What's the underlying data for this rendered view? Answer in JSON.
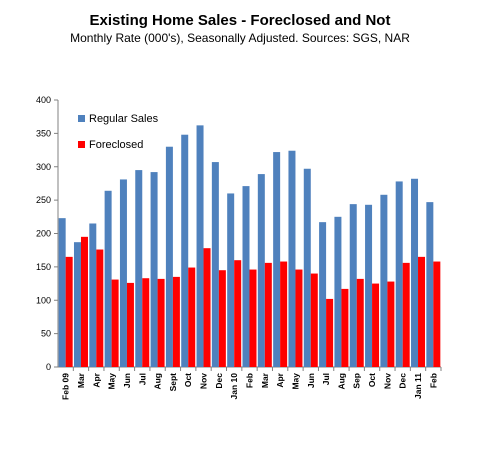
{
  "chart_data": {
    "type": "bar",
    "title": "Existing Home Sales - Foreclosed and Not",
    "subtitle": "Monthly Rate (000's), Seasonally Adjusted.  Sources: SGS, NAR",
    "categories": [
      "Feb 09",
      "Mar",
      "Apr",
      "May",
      "Jun",
      "Jul",
      "Aug",
      "Sept",
      "Oct",
      "Nov",
      "Dec",
      "Jan 10",
      "Feb",
      "Mar",
      "Apr",
      "May",
      "Jun",
      "Jul",
      "Aug",
      "Sep",
      "Oct",
      "Nov",
      "Dec",
      "Jan 11",
      "Feb"
    ],
    "series": [
      {
        "name": "Regular Sales",
        "color": "#4f81bd",
        "values": [
          223,
          187,
          215,
          264,
          281,
          295,
          292,
          330,
          348,
          362,
          307,
          260,
          271,
          289,
          322,
          324,
          297,
          217,
          225,
          244,
          243,
          258,
          278,
          282,
          247
        ]
      },
      {
        "name": "Foreclosed",
        "color": "#ff0000",
        "values": [
          165,
          195,
          176,
          131,
          126,
          133,
          132,
          135,
          149,
          178,
          145,
          160,
          146,
          156,
          158,
          146,
          140,
          102,
          117,
          132,
          125,
          128,
          156,
          165,
          158
        ]
      }
    ],
    "ylim": [
      0,
      400
    ],
    "yticks": [
      0,
      50,
      100,
      150,
      200,
      250,
      300,
      350,
      400
    ],
    "legend_position": "top-left",
    "grid": false
  }
}
